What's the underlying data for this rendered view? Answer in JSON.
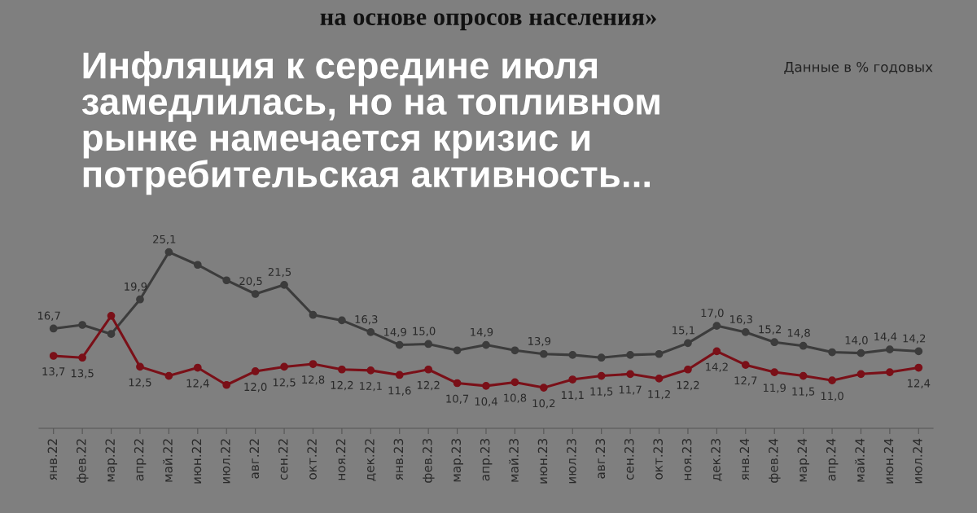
{
  "chart_data": {
    "type": "line",
    "title": "Инфляция к середине июля\nзамедлилась, но на топливном\nрынке намечается кризис и\nпотребительская активность...",
    "annotations": [
      "на основе опросов населения»",
      "Данные в % годовых"
    ],
    "categories": [
      "янв.22",
      "фев.22",
      "мар.22",
      "апр.22",
      "май.22",
      "июн.22",
      "июл.22",
      "авг.22",
      "сен.22",
      "окт.22",
      "ноя.22",
      "дек.22",
      "янв.23",
      "фев.23",
      "мар.23",
      "апр.23",
      "май.23",
      "июн.23",
      "июл.23",
      "авг.23",
      "сен.23",
      "окт.23",
      "ноя.23",
      "дек.23",
      "янв.24",
      "фев.24",
      "мар.24",
      "апр.24",
      "май.24",
      "июн.24",
      "июл.24"
    ],
    "series": [
      {
        "color": "#3c3c3c",
        "values": [
          16.7,
          17.1,
          16.1,
          19.9,
          25.1,
          23.7,
          22.0,
          20.5,
          21.5,
          18.2,
          17.6,
          16.3,
          14.9,
          15.0,
          14.3,
          14.9,
          14.3,
          13.9,
          13.8,
          13.5,
          13.8,
          13.9,
          15.1,
          17.0,
          16.3,
          15.2,
          14.8,
          14.1,
          14.0,
          14.4,
          14.2
        ],
        "value_labels": [
          "16,7",
          null,
          null,
          "19,9",
          "25,1",
          null,
          null,
          "20,5",
          "21,5",
          null,
          null,
          "16,3",
          "14,9",
          "15,0",
          null,
          "14,9",
          null,
          "13,9",
          null,
          null,
          null,
          null,
          "15,1",
          "17,0",
          "16,3",
          "15,2",
          "14,8",
          null,
          "14,0",
          "14,4",
          "14,2"
        ]
      },
      {
        "color": "#7a1018",
        "values": [
          13.7,
          13.5,
          18.1,
          12.5,
          11.5,
          12.4,
          10.5,
          12.0,
          12.5,
          12.8,
          12.2,
          12.1,
          11.6,
          12.2,
          10.7,
          10.4,
          10.8,
          10.2,
          11.1,
          11.5,
          11.7,
          11.2,
          12.2,
          14.2,
          12.7,
          11.9,
          11.5,
          11.0,
          11.7,
          11.9,
          12.4
        ],
        "value_labels": [
          "13,7",
          "13,5",
          null,
          "12,5",
          null,
          "12,4",
          null,
          "12,0",
          "12,5",
          "12,8",
          "12,2",
          "12,1",
          "11,6",
          "12,2",
          "10,7",
          "10,4",
          "10,8",
          "10,2",
          "11,1",
          "11,5",
          "11,7",
          "11,2",
          "12,2",
          "14,2",
          "12,7",
          "11,9",
          "11,5",
          "11,0",
          null,
          null,
          "12,4"
        ]
      }
    ],
    "marker": "circle",
    "line_style": "solid",
    "grid": false,
    "legend": false
  }
}
